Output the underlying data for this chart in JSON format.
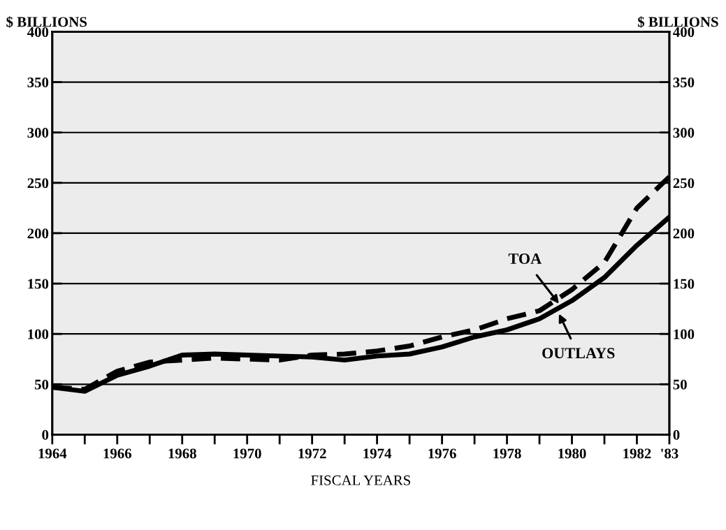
{
  "chart_data": {
    "type": "line",
    "xlabel": "FISCAL YEARS",
    "ylabel": "$ BILLIONS",
    "y2label": "$ BILLIONS",
    "x": [
      1964,
      1965,
      1966,
      1967,
      1968,
      1969,
      1970,
      1971,
      1972,
      1973,
      1974,
      1975,
      1976,
      1977,
      1978,
      1979,
      1980,
      1981,
      1982,
      1983
    ],
    "series": [
      {
        "color": "#000000",
        "line_style": "dashed",
        "values": [
          47,
          45,
          63,
          72,
          74,
          76,
          75,
          74,
          79,
          80,
          83,
          88,
          97,
          104,
          115,
          123,
          144,
          171,
          225,
          256
        ]
      },
      {
        "color": "#000000",
        "line_style": "solid",
        "values": [
          47,
          43,
          59,
          68,
          79,
          80,
          79,
          78,
          77,
          74,
          78,
          80,
          87,
          97,
          104,
          115,
          133,
          156,
          188,
          216
        ]
      }
    ],
    "xlim": [
      1964,
      1983
    ],
    "xticks": [
      1964,
      {
        "value": 1965,
        "label": null
      },
      1966,
      {
        "value": 1967,
        "label": null
      },
      1968,
      {
        "value": 1969,
        "label": null
      },
      1970,
      {
        "value": 1971,
        "label": null
      },
      1972,
      {
        "value": 1973,
        "label": null
      },
      1974,
      {
        "value": 1975,
        "label": null
      },
      1976,
      {
        "value": 1977,
        "label": null
      },
      1978,
      {
        "value": 1979,
        "label": null
      },
      1980,
      {
        "value": 1981,
        "label": null
      },
      1982,
      {
        "value": 1983,
        "label": "'83"
      }
    ],
    "ylim": [
      0,
      400
    ],
    "yticks": [
      0,
      50,
      100,
      150,
      200,
      250,
      300,
      350,
      400
    ],
    "y2lim": [
      0,
      400
    ],
    "y2ticks": [
      0,
      50,
      100,
      150,
      200,
      250,
      300,
      350,
      400
    ],
    "grid": "y",
    "marker": "none",
    "annotations": [
      {
        "text": "TOA",
        "x": 1979.6,
        "y": 130
      },
      {
        "text": "OUTLAYS",
        "x": 1979.6,
        "y": 120
      }
    ]
  }
}
